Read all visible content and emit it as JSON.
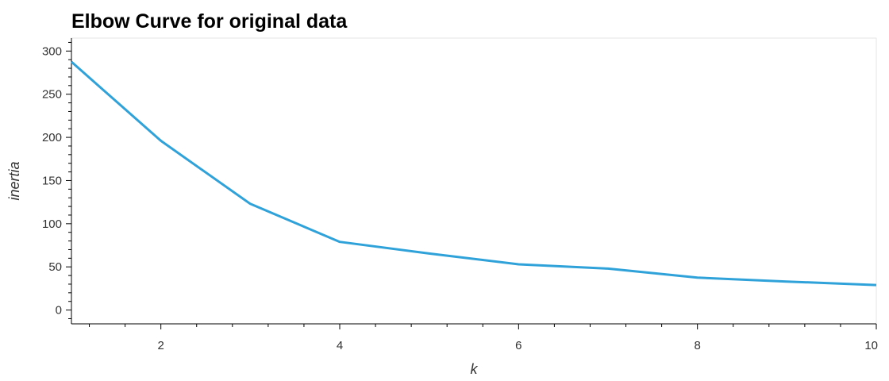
{
  "chart_data": {
    "type": "line",
    "title": "Elbow Curve for original data",
    "xlabel": "k",
    "ylabel": "inertia",
    "x": [
      1,
      2,
      3,
      4,
      5,
      6,
      7,
      8,
      9,
      10
    ],
    "series": [
      {
        "values": [
          287.5,
          196,
          123,
          79,
          65.5,
          53,
          48,
          37.5,
          33,
          29
        ]
      }
    ],
    "xlim": [
      1,
      10
    ],
    "ylim": [
      -16,
      315
    ],
    "x_ticks": [
      2,
      4,
      6,
      8,
      10
    ],
    "y_ticks": [
      0,
      50,
      100,
      150,
      200,
      250,
      300
    ],
    "line_color": "#30a2da",
    "grid": false
  }
}
